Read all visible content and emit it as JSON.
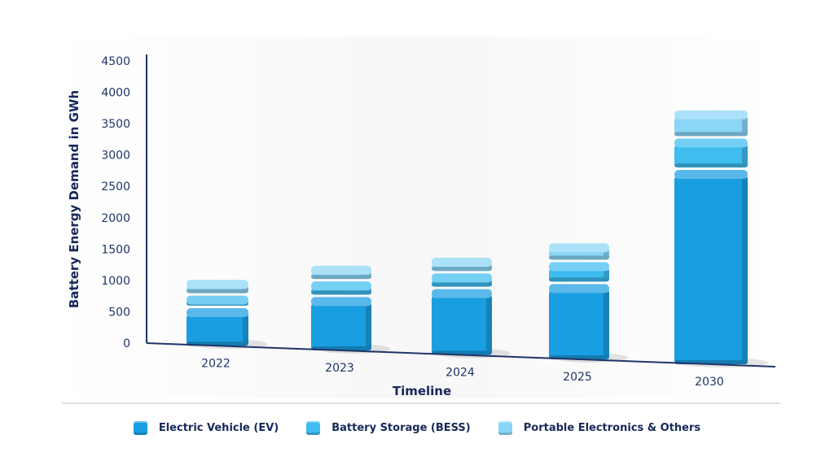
{
  "chart_data": {
    "type": "bar",
    "stacked": true,
    "categories": [
      "2022",
      "2023",
      "2024",
      "2025",
      "2030"
    ],
    "series": [
      {
        "name": "Electric Vehicle (EV)",
        "color": "#1a9ee2",
        "values": [
          600,
          850,
          1050,
          1200,
          3100
        ]
      },
      {
        "name": "Battery Storage (BESS)",
        "color": "#3fbcf0",
        "values": [
          200,
          250,
          250,
          350,
          500
        ]
      },
      {
        "name": "Portable Electronics & Others",
        "color": "#8ad6f6",
        "values": [
          250,
          250,
          250,
          300,
          450
        ]
      }
    ],
    "xlabel": "Timeline",
    "ylabel": "Battery Energy Demand in GWh",
    "ylim": [
      0,
      4500
    ],
    "yticks": [
      0,
      500,
      1000,
      1500,
      2000,
      2500,
      3000,
      3500,
      4000,
      4500
    ],
    "grid": false,
    "legend": "bottom"
  }
}
